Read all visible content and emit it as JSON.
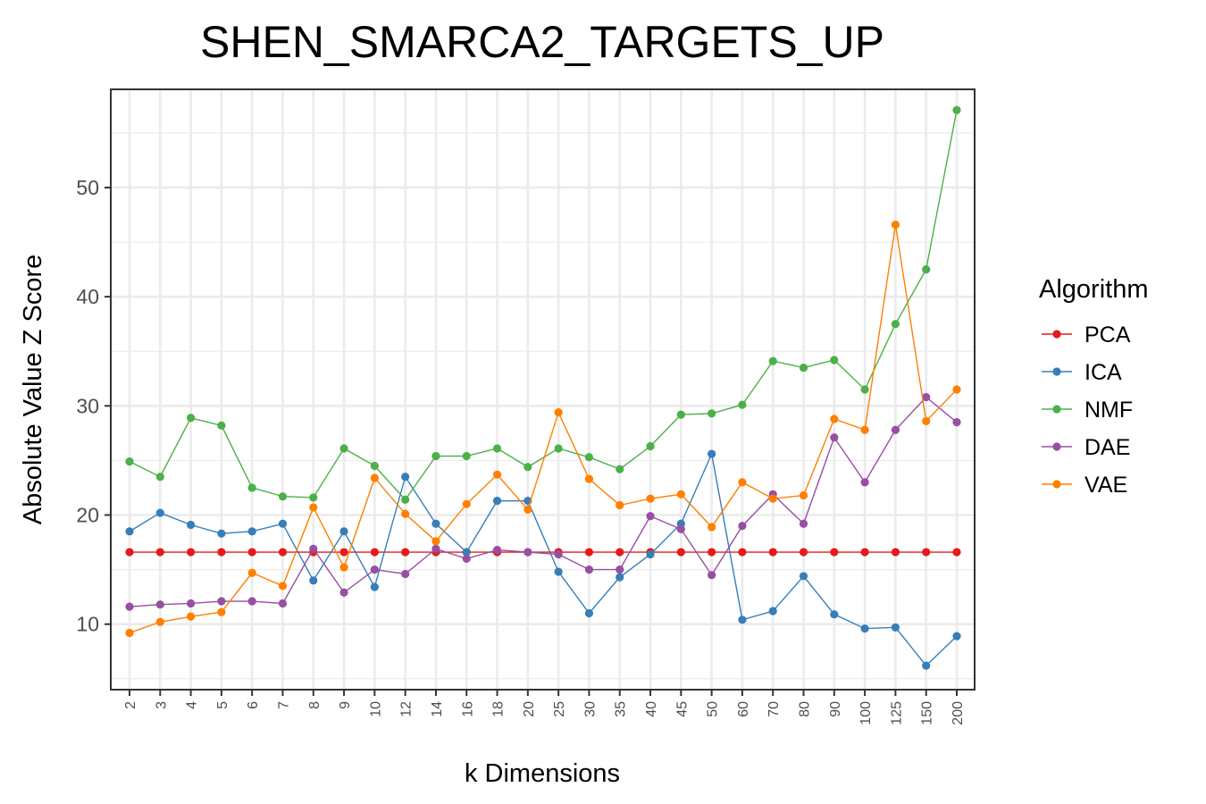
{
  "chart_data": {
    "type": "line",
    "title": "SHEN_SMARCA2_TARGETS_UP",
    "xlabel": "k Dimensions",
    "ylabel": "Absolute Value Z Score",
    "categories": [
      "2",
      "3",
      "4",
      "5",
      "6",
      "7",
      "8",
      "9",
      "10",
      "12",
      "14",
      "16",
      "18",
      "20",
      "25",
      "30",
      "35",
      "40",
      "45",
      "50",
      "60",
      "70",
      "80",
      "90",
      "100",
      "125",
      "150",
      "200"
    ],
    "ylim": [
      4,
      59
    ],
    "yticks": [
      10,
      20,
      30,
      40,
      50
    ],
    "grid": true,
    "legend": {
      "title": "Algorithm",
      "position": "right"
    },
    "series": [
      {
        "name": "PCA",
        "color": "#E41A1C",
        "values": [
          16.6,
          16.6,
          16.6,
          16.6,
          16.6,
          16.6,
          16.6,
          16.6,
          16.6,
          16.6,
          16.6,
          16.6,
          16.6,
          16.6,
          16.6,
          16.6,
          16.6,
          16.6,
          16.6,
          16.6,
          16.6,
          16.6,
          16.6,
          16.6,
          16.6,
          16.6,
          16.6,
          16.6
        ]
      },
      {
        "name": "ICA",
        "color": "#377EB8",
        "values": [
          18.5,
          20.2,
          19.1,
          18.3,
          18.5,
          19.2,
          14.0,
          18.5,
          13.4,
          23.5,
          19.2,
          16.6,
          21.3,
          21.3,
          14.8,
          11.0,
          14.3,
          16.4,
          19.2,
          25.6,
          10.4,
          11.2,
          14.4,
          10.9,
          9.6,
          9.7,
          6.2,
          8.9
        ]
      },
      {
        "name": "NMF",
        "color": "#4DAF4A",
        "values": [
          24.9,
          23.5,
          28.9,
          28.2,
          22.5,
          21.7,
          21.6,
          26.1,
          24.5,
          21.4,
          25.4,
          25.4,
          26.1,
          24.4,
          26.1,
          25.3,
          24.2,
          26.3,
          29.2,
          29.3,
          30.1,
          34.1,
          33.5,
          34.2,
          31.5,
          37.5,
          42.5,
          57.1
        ]
      },
      {
        "name": "DAE",
        "color": "#984EA3",
        "values": [
          11.6,
          11.8,
          11.9,
          12.1,
          12.1,
          11.9,
          16.9,
          12.9,
          15.0,
          14.6,
          16.9,
          16.0,
          16.8,
          16.6,
          16.4,
          15.0,
          15.0,
          19.9,
          18.7,
          14.5,
          19.0,
          21.9,
          19.2,
          27.1,
          23.0,
          27.8,
          30.8,
          28.5
        ]
      },
      {
        "name": "VAE",
        "color": "#FF7F00",
        "values": [
          9.2,
          10.2,
          10.7,
          11.1,
          14.7,
          13.5,
          20.7,
          15.2,
          23.4,
          20.1,
          17.6,
          21.0,
          23.7,
          20.5,
          29.4,
          23.3,
          20.9,
          21.5,
          21.9,
          18.9,
          23.0,
          21.5,
          21.8,
          28.8,
          27.8,
          46.6,
          28.6,
          31.5
        ]
      }
    ]
  }
}
